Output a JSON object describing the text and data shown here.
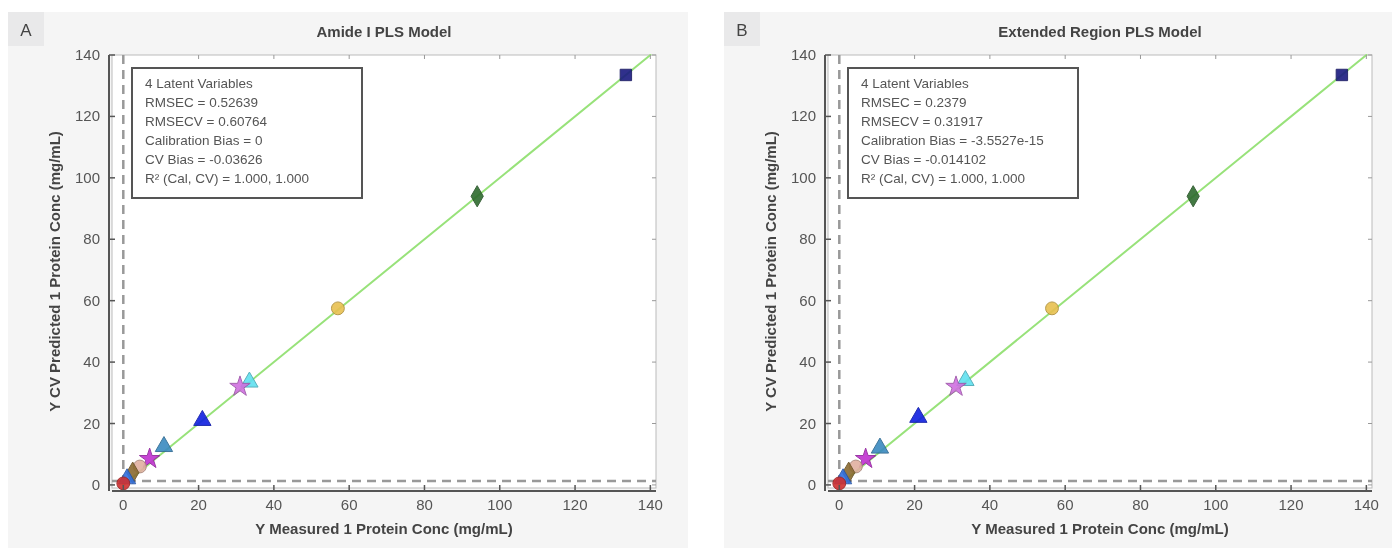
{
  "chart_data": [
    {
      "type": "scatter",
      "title": "Amide I PLS Model",
      "xlabel": "Y Measured 1 Protein Conc (mg/mL)",
      "ylabel": "Y CV Predicted 1 Protein Conc (mg/mL)",
      "annotations": [
        "A",
        "4 Latent Variables",
        "RMSEC = 0.52639",
        "RMSECV = 0.60764",
        "Calibration Bias = 0",
        "CV Bias = -0.03626",
        "R² (Cal, CV) = 1.000, 1.000"
      ],
      "xlim": [
        -3,
        141.5
      ],
      "ylim": [
        -1,
        140
      ],
      "xticks": [
        0,
        20,
        40,
        60,
        80,
        100,
        120,
        140
      ],
      "yticks": [
        0,
        20,
        40,
        60,
        80,
        100,
        120,
        140
      ],
      "grid": false,
      "ref_lines": [
        {
          "axis": "x",
          "value": 0,
          "color": "#999999",
          "line_style": "dashed"
        },
        {
          "axis": "y",
          "value": 1.3,
          "color": "#999999",
          "line_style": "dashed"
        }
      ],
      "series": [
        {
          "type": "line",
          "x": [
            0,
            140
          ],
          "values": [
            0,
            140
          ],
          "color": "#98e27a",
          "line_style": "solid"
        },
        {
          "x": [
            133.5
          ],
          "values": [
            133.5
          ],
          "color": "#1a1a80",
          "marker": "square"
        },
        {
          "x": [
            94
          ],
          "values": [
            94
          ],
          "color": "#2e6b2e",
          "marker": "diamond"
        },
        {
          "x": [
            57
          ],
          "values": [
            57.5
          ],
          "color": "#e8c050",
          "marker": "circle"
        },
        {
          "x": [
            33.5
          ],
          "values": [
            33.5
          ],
          "color": "#60e0f0",
          "marker": "triangle"
        },
        {
          "x": [
            31
          ],
          "values": [
            32
          ],
          "color": "#d070e0",
          "marker": "star"
        },
        {
          "x": [
            21
          ],
          "values": [
            21
          ],
          "color": "#1020e0",
          "marker": "triangle"
        },
        {
          "x": [
            10.8
          ],
          "values": [
            12.5
          ],
          "color": "#3a8ac0",
          "marker": "triangle"
        },
        {
          "x": [
            7
          ],
          "values": [
            8.5
          ],
          "color": "#c030d0",
          "marker": "star"
        },
        {
          "x": [
            4.4
          ],
          "values": [
            6
          ],
          "color": "#e0b0a0",
          "marker": "circle"
        },
        {
          "x": [
            2.5
          ],
          "values": [
            4
          ],
          "color": "#8a6a30",
          "marker": "diamond"
        },
        {
          "x": [
            1
          ],
          "values": [
            2
          ],
          "color": "#3070e0",
          "marker": "triangle"
        },
        {
          "x": [
            0
          ],
          "values": [
            0.5
          ],
          "color": "#d03030",
          "marker": "circle"
        }
      ]
    },
    {
      "type": "scatter",
      "title": "Extended Region PLS Model",
      "xlabel": "Y Measured 1 Protein Conc (mg/mL)",
      "ylabel": "Y CV Predicted 1 Protein Conc (mg/mL)",
      "annotations": [
        "B",
        "4 Latent Variables",
        "RMSEC = 0.2379",
        "RMSECV = 0.31917",
        "Calibration Bias = -3.5527e-15",
        "CV Bias = -0.014102",
        "R² (Cal, CV) = 1.000, 1.000"
      ],
      "xlim": [
        -3,
        141.5
      ],
      "ylim": [
        -1,
        140
      ],
      "xticks": [
        0,
        20,
        40,
        60,
        80,
        100,
        120,
        140
      ],
      "yticks": [
        0,
        20,
        40,
        60,
        80,
        100,
        120,
        140
      ],
      "grid": false,
      "ref_lines": [
        {
          "axis": "x",
          "value": 0,
          "color": "#999999",
          "line_style": "dashed"
        },
        {
          "axis": "y",
          "value": 1.3,
          "color": "#999999",
          "line_style": "dashed"
        }
      ],
      "series": [
        {
          "type": "line",
          "x": [
            0,
            140
          ],
          "values": [
            0,
            140
          ],
          "color": "#98e27a",
          "line_style": "solid"
        },
        {
          "x": [
            133.5
          ],
          "values": [
            133.5
          ],
          "color": "#1a1a80",
          "marker": "square"
        },
        {
          "x": [
            94
          ],
          "values": [
            94
          ],
          "color": "#2e6b2e",
          "marker": "diamond"
        },
        {
          "x": [
            56.5
          ],
          "values": [
            57.5
          ],
          "color": "#e8c050",
          "marker": "circle"
        },
        {
          "x": [
            33.5
          ],
          "values": [
            34
          ],
          "color": "#60e0f0",
          "marker": "triangle"
        },
        {
          "x": [
            31
          ],
          "values": [
            32
          ],
          "color": "#d070e0",
          "marker": "star"
        },
        {
          "x": [
            21
          ],
          "values": [
            22
          ],
          "color": "#1020e0",
          "marker": "triangle"
        },
        {
          "x": [
            10.8
          ],
          "values": [
            12
          ],
          "color": "#3a8ac0",
          "marker": "triangle"
        },
        {
          "x": [
            7
          ],
          "values": [
            8.5
          ],
          "color": "#c030d0",
          "marker": "star"
        },
        {
          "x": [
            4.4
          ],
          "values": [
            6
          ],
          "color": "#e0b0a0",
          "marker": "circle"
        },
        {
          "x": [
            2.5
          ],
          "values": [
            4
          ],
          "color": "#8a6a30",
          "marker": "diamond"
        },
        {
          "x": [
            1
          ],
          "values": [
            2
          ],
          "color": "#3070e0",
          "marker": "triangle"
        },
        {
          "x": [
            0
          ],
          "values": [
            0.5
          ],
          "color": "#d03030",
          "marker": "circle"
        }
      ]
    }
  ]
}
